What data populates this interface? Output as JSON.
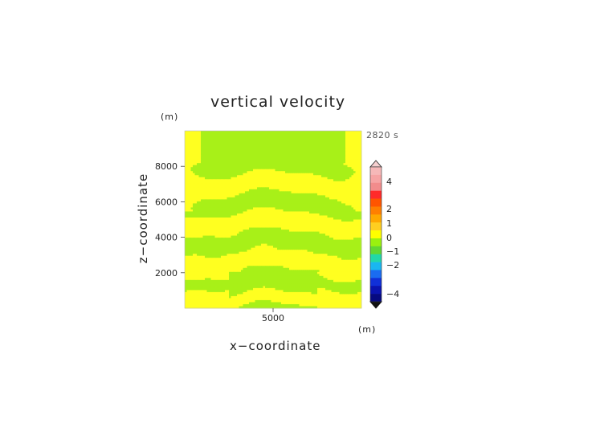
{
  "chart_data": {
    "type": "heatmap",
    "title": "vertical velocity",
    "xlabel": "x−coordinate",
    "ylabel": "z−coordinate",
    "x_unit": "(m)",
    "z_unit": "(m)",
    "time_label": "2820 s",
    "xlim": [
      0,
      10000
    ],
    "ylim": [
      0,
      10000
    ],
    "x_ticks": [
      5000
    ],
    "y_ticks": [
      2000,
      4000,
      6000,
      8000
    ],
    "colorbar": {
      "tick_labels": [
        "4",
        "2",
        "1",
        "0",
        "−1",
        "−2",
        "−4"
      ],
      "tick_values": [
        4,
        2,
        1,
        0,
        -1,
        -2,
        -4
      ],
      "levels": [
        {
          "color": "#f6b8b8"
        },
        {
          "color": "#f6a4a4"
        },
        {
          "color": "#f28c8c"
        },
        {
          "color": "#ff2a2a"
        },
        {
          "color": "#ff5500"
        },
        {
          "color": "#ff7f00"
        },
        {
          "color": "#ffa800"
        },
        {
          "color": "#ffcf20"
        },
        {
          "color": "#ffff00"
        },
        {
          "color": "#9bf10f"
        },
        {
          "color": "#62d832"
        },
        {
          "color": "#22d8a8"
        },
        {
          "color": "#1ab6f0"
        },
        {
          "color": "#1a6cf0"
        },
        {
          "color": "#1030d8"
        },
        {
          "color": "#0a14b0"
        },
        {
          "color": "#060a80"
        }
      ]
    },
    "field_colors": {
      "positive": "#ffff20",
      "negative": "#a8f018"
    }
  }
}
